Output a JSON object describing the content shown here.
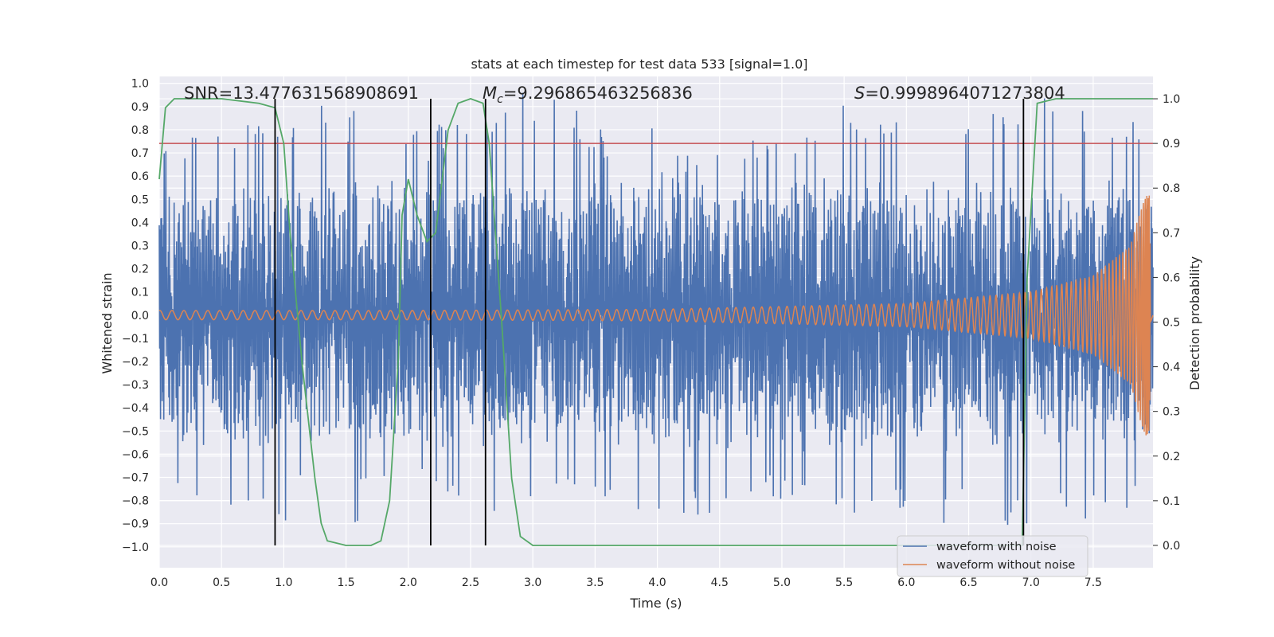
{
  "chart_data": {
    "type": "line",
    "title": "stats at each timestep for test data 533 [signal=1.0]",
    "xlabel": "Time (s)",
    "ylabel_left": "Whitened strain",
    "ylabel_right": "Detection probability",
    "xlim": [
      0.0,
      7.98
    ],
    "ylim_left": [
      -1.09,
      1.03
    ],
    "ylim_right": [
      -0.05,
      1.05
    ],
    "x_ticks": [
      "0.0",
      "0.5",
      "1.0",
      "1.5",
      "2.0",
      "2.5",
      "3.0",
      "3.5",
      "4.0",
      "4.5",
      "5.0",
      "5.5",
      "6.0",
      "6.5",
      "7.0",
      "7.5"
    ],
    "y_left_ticks": [
      "1.0",
      "0.9",
      "0.8",
      "0.7",
      "0.6",
      "0.5",
      "0.4",
      "0.3",
      "0.2",
      "0.1",
      "0.0",
      "-0.1",
      "-0.2",
      "-0.3",
      "-0.4",
      "-0.5",
      "-0.6",
      "-0.7",
      "-0.8",
      "-0.9",
      "-1.0"
    ],
    "y_right_ticks": [
      "0.0",
      "0.1",
      "0.2",
      "0.3",
      "0.4",
      "0.5",
      "0.6",
      "0.7",
      "0.8",
      "0.9",
      "1.0"
    ],
    "grid": true,
    "legend_position": "bottom-right",
    "colors": {
      "background": "#eaeaf2",
      "noisy": "#4c72b0",
      "clean": "#dd8452",
      "probability": "#55a868",
      "threshold": "#c44e52",
      "event_line": "#000000"
    },
    "annotations": {
      "snr": "SNR=13.477631568908691",
      "mc_symbol": "M",
      "mc_sub": "c",
      "mc_value": "=9.296865463256836",
      "s_symbol": "S",
      "s_value": "=0.9998964071273804"
    },
    "series": [
      {
        "name": "waveform with noise",
        "axis": "left",
        "description_envelope": {
          "x": [
            0.0,
            0.5,
            1.0,
            1.5,
            2.0,
            2.5,
            3.0,
            3.5,
            4.0,
            4.5,
            5.0,
            5.5,
            6.0,
            6.5,
            7.0,
            7.5,
            7.98
          ],
          "max": [
            0.75,
            0.82,
            0.9,
            0.92,
            0.75,
            0.85,
            0.85,
            0.82,
            0.66,
            0.78,
            0.8,
            0.93,
            0.85,
            0.85,
            0.95,
            0.9,
            0.85
          ],
          "min": [
            -0.8,
            -0.83,
            -0.82,
            -0.75,
            -0.8,
            -0.85,
            -1.0,
            -0.85,
            -0.95,
            -0.85,
            -0.8,
            -0.85,
            -0.88,
            -0.92,
            -0.9,
            -0.9,
            -0.85
          ]
        }
      },
      {
        "name": "waveform without noise",
        "axis": "left",
        "amplitude_envelope": {
          "x": [
            0.0,
            2.0,
            4.0,
            6.0,
            7.0,
            7.5,
            7.8,
            7.9,
            7.95,
            7.98
          ],
          "amp": [
            0.02,
            0.02,
            0.025,
            0.05,
            0.1,
            0.17,
            0.3,
            0.5,
            0.55,
            0.01
          ]
        }
      },
      {
        "name": "detection probability",
        "axis": "right",
        "x": [
          0.0,
          0.05,
          0.12,
          0.2,
          0.5,
          0.8,
          0.93,
          1.0,
          1.05,
          1.15,
          1.25,
          1.3,
          1.35,
          1.5,
          1.7,
          1.78,
          1.85,
          1.92,
          1.95,
          2.0,
          2.07,
          2.15,
          2.22,
          2.32,
          2.4,
          2.5,
          2.6,
          2.65,
          2.75,
          2.83,
          2.9,
          3.0,
          6.0,
          6.93,
          6.97,
          7.05,
          7.2,
          7.98
        ],
        "y": [
          0.82,
          0.98,
          1.0,
          1.0,
          1.0,
          0.99,
          0.98,
          0.9,
          0.7,
          0.4,
          0.15,
          0.05,
          0.01,
          0.0,
          0.0,
          0.01,
          0.1,
          0.42,
          0.74,
          0.82,
          0.74,
          0.68,
          0.7,
          0.93,
          0.99,
          1.0,
          0.99,
          0.9,
          0.5,
          0.15,
          0.02,
          0.0,
          0.0,
          0.0,
          0.6,
          0.99,
          1.0,
          1.0
        ]
      }
    ],
    "threshold_right": 0.9,
    "event_lines_x": [
      0.93,
      2.18,
      2.62,
      6.94
    ],
    "legend": [
      "waveform with noise",
      "waveform without noise"
    ]
  }
}
